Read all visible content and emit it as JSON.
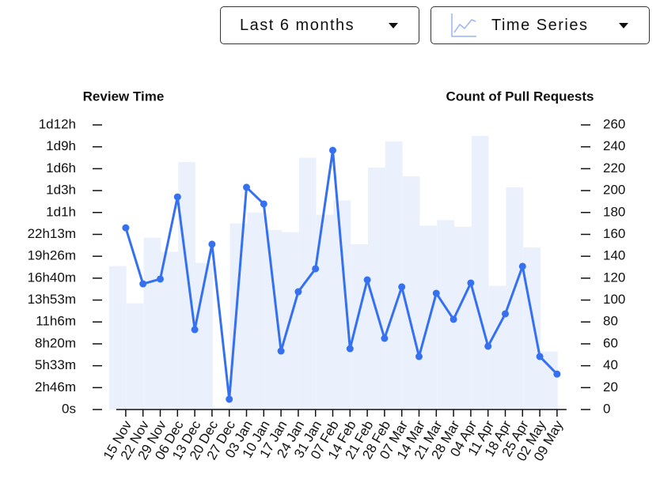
{
  "controls": {
    "period": "Last 6 months",
    "view": "Time Series"
  },
  "chart_data": {
    "type": "bar-line",
    "ylabel": "Review Time",
    "y2label": "Count of Pull Requests",
    "categories": [
      "15 Nov",
      "22 Nov",
      "29 Nov",
      "06 Dec",
      "13 Dec",
      "20 Dec",
      "27 Dec",
      "03 Jan",
      "10 Jan",
      "17 Jan",
      "24 Jan",
      "31 Jan",
      "07 Feb",
      "14 Feb",
      "21 Feb",
      "28 Feb",
      "07 Mar",
      "14 Mar",
      "21 Mar",
      "28 Mar",
      "04 Apr",
      "11 Apr",
      "18 Apr",
      "25 Apr",
      "02 May",
      "09 May"
    ],
    "series": [
      {
        "type": "bar",
        "axis": "y2",
        "color": "#ebf0fd",
        "values": [
          131,
          97,
          157,
          144,
          226,
          134,
          2,
          170,
          180,
          164,
          162,
          230,
          178,
          191,
          151,
          221,
          245,
          213,
          168,
          173,
          167,
          250,
          113,
          203,
          148,
          53
        ]
      },
      {
        "type": "line",
        "axis": "y",
        "color": "#3470f0",
        "values": [
          83000,
          57400,
          59600,
          97100,
          36500,
          75500,
          4700,
          101500,
          93900,
          26700,
          53800,
          64300,
          118400,
          27800,
          59200,
          32500,
          56000,
          24200,
          53100,
          41200,
          57800,
          28900,
          43700,
          65400,
          24200,
          16200
        ]
      }
    ],
    "ylim": [
      0,
      130000
    ],
    "yticks": [
      {
        "value": 0,
        "label": "0s"
      },
      {
        "value": 10000,
        "label": "2h46m"
      },
      {
        "value": 20000,
        "label": "5h33m"
      },
      {
        "value": 30000,
        "label": "8h20m"
      },
      {
        "value": 40000,
        "label": "11h6m"
      },
      {
        "value": 50000,
        "label": "13h53m"
      },
      {
        "value": 60000,
        "label": "16h40m"
      },
      {
        "value": 70000,
        "label": "19h26m"
      },
      {
        "value": 80000,
        "label": "22h13m"
      },
      {
        "value": 90000,
        "label": "1d1h"
      },
      {
        "value": 100000,
        "label": "1d3h"
      },
      {
        "value": 110000,
        "label": "1d6h"
      },
      {
        "value": 120000,
        "label": "1d9h"
      },
      {
        "value": 130000,
        "label": "1d12h"
      }
    ],
    "y2lim": [
      0,
      260
    ],
    "y2ticks": [
      0,
      20,
      40,
      60,
      80,
      100,
      120,
      140,
      160,
      180,
      200,
      220,
      240,
      260
    ]
  }
}
